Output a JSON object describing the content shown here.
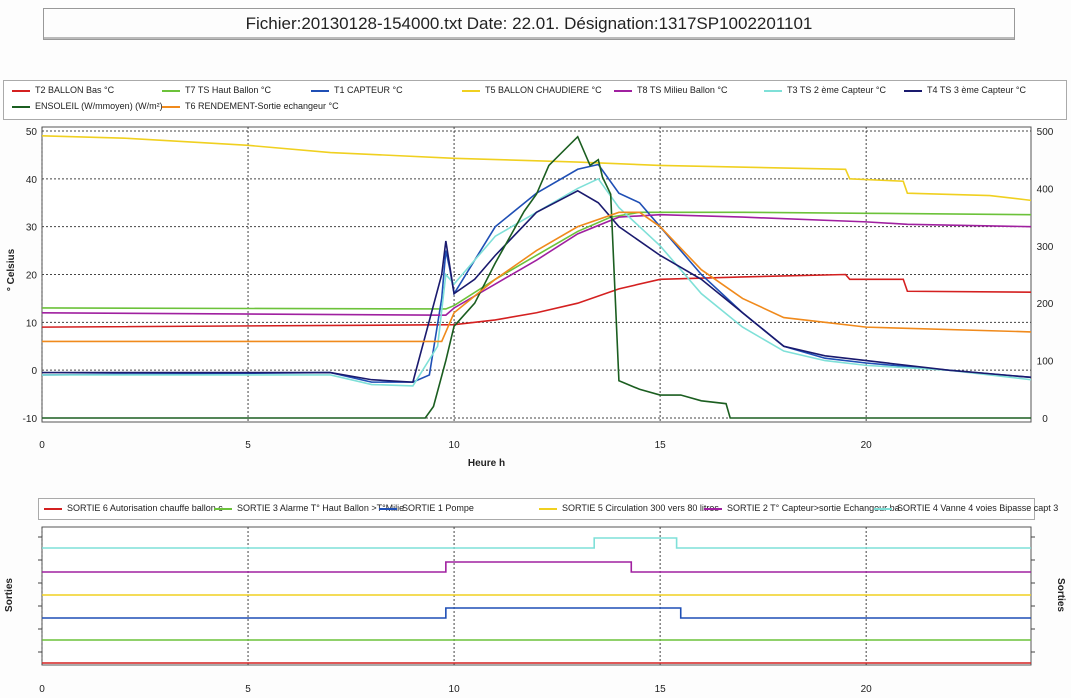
{
  "header": {
    "title": "Fichier:20130128-154000.txt Date:  22.01. Désignation:1317SP1002201101"
  },
  "chart_data": [
    {
      "type": "line",
      "title": "",
      "xlabel": "Heure h",
      "ylabel": "° Celsius",
      "xlim": [
        0,
        24
      ],
      "ylim": [
        -10,
        50
      ],
      "y2lim": [
        0,
        500
      ],
      "xticks": [
        "0",
        "5",
        "10",
        "15",
        "20"
      ],
      "yticks": [
        "-10",
        "0",
        "10",
        "20",
        "30",
        "40",
        "50"
      ],
      "y2ticks": [
        "0",
        "100",
        "200",
        "300",
        "400",
        "500"
      ],
      "grid": true,
      "legend_placement": "top",
      "series": [
        {
          "name": "T2 BALLON  Bas °C",
          "color": "#d42020",
          "axis": "left",
          "points": [
            [
              0,
              9
            ],
            [
              10,
              9.5
            ],
            [
              11,
              10.5
            ],
            [
              12,
              12
            ],
            [
              13,
              14
            ],
            [
              14,
              17
            ],
            [
              15,
              19
            ],
            [
              17,
              19.5
            ],
            [
              19.5,
              20
            ],
            [
              19.6,
              19
            ],
            [
              20.9,
              19
            ],
            [
              21,
              16.5
            ],
            [
              24,
              16.3
            ]
          ]
        },
        {
          "name": "T7 TS   Haut Ballon °C",
          "color": "#6cc23a",
          "axis": "left",
          "points": [
            [
              0,
              13
            ],
            [
              9.8,
              12.8
            ],
            [
              10,
              13.5
            ],
            [
              11,
              19
            ],
            [
              12,
              24
            ],
            [
              13,
              29
            ],
            [
              13.8,
              32
            ],
            [
              14.5,
              33
            ],
            [
              17,
              33
            ],
            [
              20,
              32.8
            ],
            [
              24,
              32.5
            ]
          ]
        },
        {
          "name": "T1 CAPTEUR °C",
          "color": "#1f4fb5",
          "axis": "left",
          "points": [
            [
              0,
              -1
            ],
            [
              7,
              -0.5
            ],
            [
              8,
              -2.5
            ],
            [
              9,
              -2.5
            ],
            [
              9.4,
              -1
            ],
            [
              9.7,
              15
            ],
            [
              9.8,
              25
            ],
            [
              9.9,
              21
            ],
            [
              10,
              16
            ],
            [
              10.5,
              23
            ],
            [
              11,
              30
            ],
            [
              12,
              37
            ],
            [
              13,
              42
            ],
            [
              13.5,
              43
            ],
            [
              14,
              37
            ],
            [
              14.5,
              35
            ],
            [
              15,
              30
            ],
            [
              16,
              20
            ],
            [
              17,
              12
            ],
            [
              18,
              5
            ],
            [
              19,
              2.5
            ],
            [
              20,
              1.5
            ],
            [
              22,
              0
            ],
            [
              24,
              -1.5
            ]
          ]
        },
        {
          "name": "T5 BALLON CHAUDIERE °C",
          "color": "#f0d020",
          "axis": "left",
          "points": [
            [
              0,
              49
            ],
            [
              2,
              48.5
            ],
            [
              5,
              47
            ],
            [
              7,
              45.5
            ],
            [
              10,
              44.3
            ],
            [
              13,
              43.5
            ],
            [
              15,
              42.8
            ],
            [
              19.5,
              42
            ],
            [
              19.6,
              40
            ],
            [
              20.9,
              39.5
            ],
            [
              21,
              37
            ],
            [
              23,
              36.5
            ],
            [
              24,
              35.5
            ]
          ]
        },
        {
          "name": "T8 TS  Milieu Ballon °C",
          "color": "#a020a0",
          "axis": "left",
          "points": [
            [
              0,
              12
            ],
            [
              9.8,
              11.5
            ],
            [
              10,
              13
            ],
            [
              11,
              18
            ],
            [
              12,
              23
            ],
            [
              13,
              28.5
            ],
            [
              14,
              32
            ],
            [
              15,
              32.5
            ],
            [
              17,
              32
            ],
            [
              20,
              31
            ],
            [
              21,
              30.5
            ],
            [
              24,
              30
            ]
          ]
        },
        {
          "name": "T3 TS   2 ème Capteur °C",
          "color": "#7fe0d8",
          "axis": "left",
          "points": [
            [
              0,
              -1
            ],
            [
              7,
              -1
            ],
            [
              8,
              -3
            ],
            [
              9,
              -3.3
            ],
            [
              9.6,
              5
            ],
            [
              9.8,
              20
            ],
            [
              10,
              18
            ],
            [
              11,
              28
            ],
            [
              12,
              33
            ],
            [
              13,
              38
            ],
            [
              13.5,
              40
            ],
            [
              14,
              34
            ],
            [
              15,
              26
            ],
            [
              16,
              16
            ],
            [
              17,
              9
            ],
            [
              18,
              4
            ],
            [
              19,
              2
            ],
            [
              20,
              1
            ],
            [
              22,
              0
            ],
            [
              24,
              -2
            ]
          ]
        },
        {
          "name": "T4 TS   3 ème Capteur °C",
          "color": "#1a1a6e",
          "axis": "left",
          "points": [
            [
              0,
              -0.5
            ],
            [
              7,
              -0.5
            ],
            [
              8,
              -2
            ],
            [
              9,
              -2.5
            ],
            [
              9.7,
              20
            ],
            [
              9.8,
              27
            ],
            [
              10,
              16
            ],
            [
              10.5,
              19
            ],
            [
              11,
              24
            ],
            [
              12,
              33
            ],
            [
              13,
              37.5
            ],
            [
              13.5,
              35
            ],
            [
              14,
              30
            ],
            [
              15,
              24
            ],
            [
              16,
              19
            ],
            [
              17,
              12
            ],
            [
              18,
              5
            ],
            [
              19,
              3
            ],
            [
              20,
              2
            ],
            [
              22,
              0
            ],
            [
              24,
              -1.5
            ]
          ]
        },
        {
          "name": "ENSOLEIL (W/mmoyen) (W/m²)",
          "color": "#1b5e20",
          "axis": "right",
          "points": [
            [
              0,
              0
            ],
            [
              9.3,
              0
            ],
            [
              9.5,
              20
            ],
            [
              9.8,
              100
            ],
            [
              10,
              160
            ],
            [
              10.5,
              200
            ],
            [
              11,
              270
            ],
            [
              11.7,
              360
            ],
            [
              12,
              390
            ],
            [
              12.3,
              440
            ],
            [
              13,
              490
            ],
            [
              13.3,
              440
            ],
            [
              13.5,
              450
            ],
            [
              13.6,
              420
            ],
            [
              13.8,
              390
            ],
            [
              14,
              65
            ],
            [
              14.5,
              50
            ],
            [
              15,
              40
            ],
            [
              15.5,
              40
            ],
            [
              16,
              30
            ],
            [
              16.6,
              25
            ],
            [
              16.7,
              0
            ],
            [
              24,
              0
            ]
          ]
        },
        {
          "name": "T6 RENDEMENT-Sortie echangeur °C",
          "color": "#f08a1c",
          "axis": "left",
          "points": [
            [
              0,
              6
            ],
            [
              9.7,
              6
            ],
            [
              10,
              12
            ],
            [
              11,
              19
            ],
            [
              12,
              25
            ],
            [
              13,
              30
            ],
            [
              14,
              33
            ],
            [
              14.5,
              33
            ],
            [
              15,
              30
            ],
            [
              16,
              21
            ],
            [
              17,
              15
            ],
            [
              18,
              11
            ],
            [
              19,
              10
            ],
            [
              20,
              9
            ],
            [
              24,
              8
            ]
          ]
        }
      ]
    },
    {
      "type": "line",
      "title": "",
      "ylabel": "Sorties",
      "y2label": "Sorties",
      "xlim": [
        0,
        24
      ],
      "xticks": [
        "0",
        "5",
        "10",
        "15",
        "20"
      ],
      "grid": true,
      "legend_placement": "top",
      "series": [
        {
          "name": "SORTIE 6  Autorisation chauffe ballon c",
          "color": "#d42020",
          "on": []
        },
        {
          "name": "SORTIE 3  Alarme T° Haut Ballon >T°Milie",
          "color": "#6cc23a",
          "on": []
        },
        {
          "name": "SORTIE 1   Pompe",
          "color": "#1f4fb5",
          "on": [
            [
              9.8,
              15.5
            ]
          ]
        },
        {
          "name": "SORTIE 5 Circulation 300 vers 80 litres",
          "color": "#f0d020",
          "on": []
        },
        {
          "name": "SORTIE 2  T° Capteur>sortie Echangeur ba",
          "color": "#a020a0",
          "on": [
            [
              9.8,
              14.3
            ]
          ]
        },
        {
          "name": "SORTIE 4  Vanne 4 voies Bipasse capt 3",
          "color": "#7fe0d8",
          "on": [
            [
              13.4,
              15.4
            ]
          ]
        }
      ]
    }
  ]
}
